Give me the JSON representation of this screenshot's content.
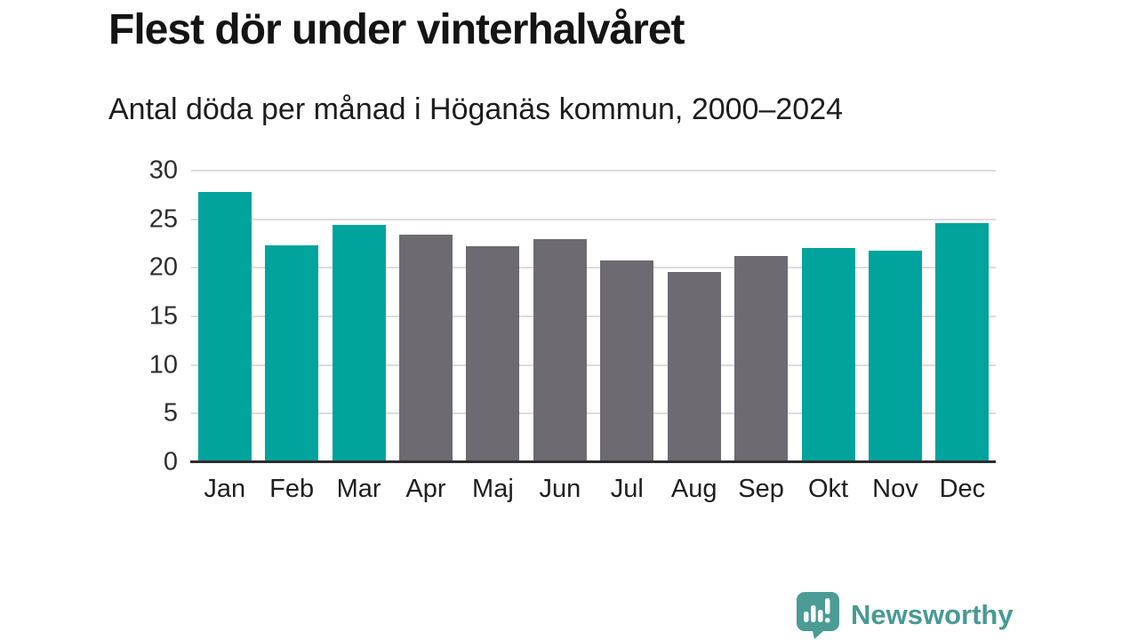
{
  "header": {
    "title": "Flest dör under vinterhalvåret",
    "subtitle": "Antal döda per månad i Höganäs kommun, 2000–2024"
  },
  "chart_data": {
    "type": "bar",
    "title": "Flest dör under vinterhalvåret",
    "subtitle": "Antal döda per månad i Höganäs kommun, 2000–2024",
    "categories": [
      "Jan",
      "Feb",
      "Mar",
      "Apr",
      "Maj",
      "Jun",
      "Jul",
      "Aug",
      "Sep",
      "Okt",
      "Nov",
      "Dec"
    ],
    "values": [
      27.8,
      22.3,
      24.4,
      23.4,
      22.2,
      23.0,
      20.8,
      19.6,
      21.2,
      22.0,
      21.8,
      24.6
    ],
    "bar_color_keys": [
      "winter",
      "winter",
      "winter",
      "summer",
      "summer",
      "summer",
      "summer",
      "summer",
      "summer",
      "winter",
      "winter",
      "winter"
    ],
    "colors": {
      "winter": "#00a49c",
      "summer": "#6e6a71",
      "gridline": "#dcdcdc",
      "axis": "#2e2d2f"
    },
    "xlabel": "",
    "ylabel": "",
    "ylim": [
      0,
      30
    ],
    "yticks": [
      0,
      5,
      10,
      15,
      20,
      25,
      30
    ],
    "grid": true,
    "legend": "none"
  },
  "footer": {
    "brand": "Newsworthy",
    "brand_color": "#489a93",
    "logo_icon": "newsworthy-speech-bubble-bar-chart-icon"
  }
}
